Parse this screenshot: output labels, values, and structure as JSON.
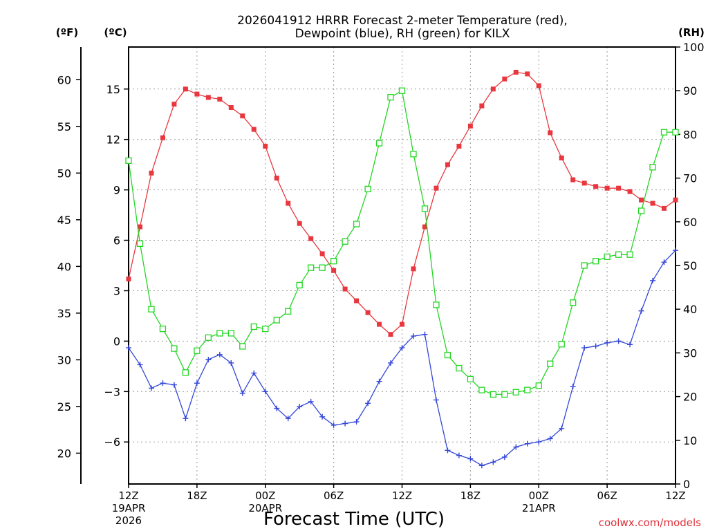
{
  "chart_data": {
    "type": "line",
    "title_line1": "2026041912 HRRR Forecast 2-meter Temperature (red),",
    "title_line2": "Dewpoint (blue), RH (green) for KILX",
    "xlabel": "Forecast Time (UTC)",
    "credit": "coolwx.com/models",
    "units": {
      "fahrenheit": "(ºF)",
      "celsius": "(ºC)",
      "rh": "(RH)"
    },
    "x_range_hours": [
      0,
      48
    ],
    "x_ticks": [
      {
        "hour": 0,
        "lines": [
          "12Z",
          "19APR",
          "2026"
        ]
      },
      {
        "hour": 6,
        "lines": [
          "18Z"
        ]
      },
      {
        "hour": 12,
        "lines": [
          "00Z",
          "20APR"
        ]
      },
      {
        "hour": 18,
        "lines": [
          "06Z"
        ]
      },
      {
        "hour": 24,
        "lines": [
          "12Z"
        ]
      },
      {
        "hour": 30,
        "lines": [
          "18Z"
        ]
      },
      {
        "hour": 36,
        "lines": [
          "00Z",
          "21APR"
        ]
      },
      {
        "hour": 42,
        "lines": [
          "06Z"
        ]
      },
      {
        "hour": 48,
        "lines": [
          "12Z"
        ]
      }
    ],
    "celsius_axis": {
      "range": [
        -8.5,
        17.5
      ],
      "ticks": [
        "15",
        "12",
        "9",
        "6",
        "3",
        "0",
        "−3",
        "−6"
      ],
      "tick_values": [
        15,
        12,
        9,
        6,
        3,
        0,
        -3,
        -6
      ]
    },
    "fahrenheit_axis": {
      "range": [
        16.7,
        63.5
      ],
      "ticks": [
        "60",
        "55",
        "50",
        "45",
        "40",
        "35",
        "30",
        "25",
        "20"
      ],
      "tick_values": [
        60,
        55,
        50,
        45,
        40,
        35,
        30,
        25,
        20
      ]
    },
    "rh_axis": {
      "range": [
        0,
        100
      ],
      "ticks": [
        "100",
        "90",
        "80",
        "70",
        "60",
        "50",
        "40",
        "30",
        "20",
        "10",
        "0"
      ],
      "tick_values": [
        100,
        90,
        80,
        70,
        60,
        50,
        40,
        30,
        20,
        10,
        0
      ]
    },
    "series": [
      {
        "name": "Temperature (°C)",
        "axis": "celsius",
        "color": "#e8373e",
        "marker": "filled-square",
        "values": [
          3.7,
          6.8,
          10.0,
          12.1,
          14.1,
          15.0,
          14.7,
          14.5,
          14.4,
          13.9,
          13.4,
          12.6,
          11.6,
          9.7,
          8.2,
          7.0,
          6.1,
          5.2,
          4.2,
          3.1,
          2.4,
          1.7,
          1.0,
          0.4,
          1.0,
          4.3,
          6.8,
          9.1,
          10.5,
          11.6,
          12.8,
          14.0,
          15.0,
          15.6,
          16.0,
          15.9,
          15.2,
          12.4,
          10.9,
          9.6,
          9.4,
          9.2,
          9.1,
          9.1,
          8.9,
          8.4,
          8.2,
          7.9,
          8.4
        ]
      },
      {
        "name": "Dewpoint (°C)",
        "axis": "celsius",
        "color": "#3246d8",
        "marker": "plus",
        "values": [
          -0.4,
          -1.4,
          -2.8,
          -2.5,
          -2.6,
          -4.6,
          -2.5,
          -1.1,
          -0.8,
          -1.3,
          -3.1,
          -1.9,
          -3.0,
          -4.0,
          -4.6,
          -3.9,
          -3.6,
          -4.5,
          -5.0,
          -4.9,
          -4.8,
          -3.7,
          -2.4,
          -1.3,
          -0.4,
          0.3,
          0.4,
          -3.5,
          -6.5,
          -6.8,
          -7.0,
          -7.4,
          -7.2,
          -6.9,
          -6.3,
          -6.1,
          -6.0,
          -5.8,
          -5.2,
          -2.7,
          -0.4,
          -0.3,
          -0.1,
          0.0,
          -0.2,
          1.8,
          3.6,
          4.7,
          5.4
        ]
      },
      {
        "name": "RH (%)",
        "axis": "rh",
        "color": "#22d622",
        "marker": "open-square",
        "values": [
          74,
          55,
          40,
          35.5,
          31,
          25.5,
          30.5,
          33.5,
          34.5,
          34.5,
          31.5,
          36,
          35.5,
          37.5,
          39.5,
          45.5,
          49.5,
          49.5,
          51,
          55.5,
          59.5,
          67.5,
          78,
          88.5,
          90,
          75.5,
          63,
          41,
          29.5,
          26.5,
          24,
          21.5,
          20.5,
          20.5,
          21,
          21.5,
          22.5,
          27.5,
          32,
          41.5,
          50,
          51,
          52,
          52.5,
          52.5,
          62.5,
          72.5,
          80.5,
          80.5
        ]
      }
    ]
  }
}
